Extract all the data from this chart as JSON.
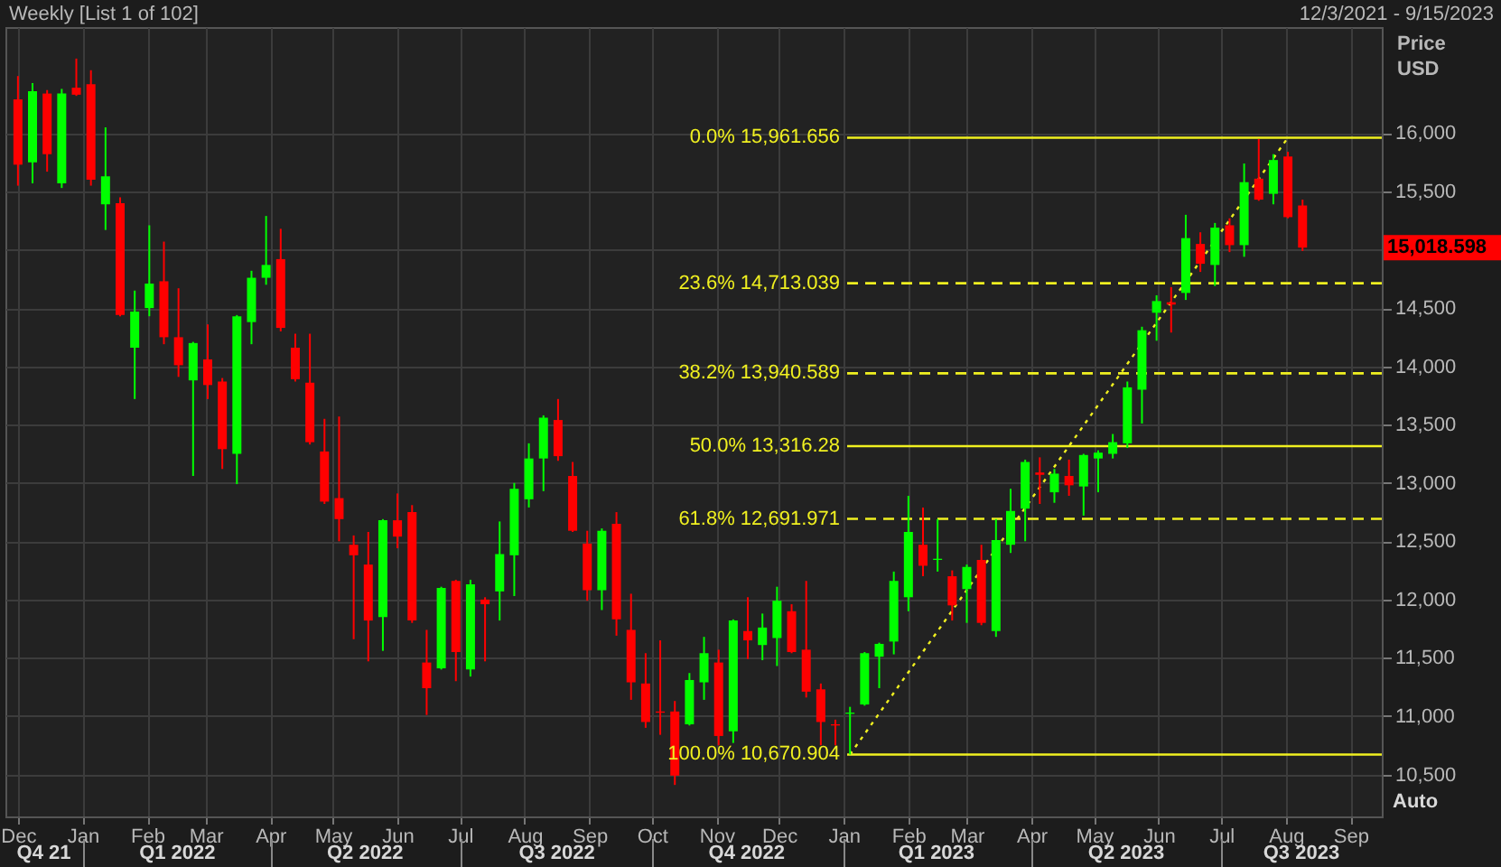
{
  "chart_data": {
    "type": "candlestick",
    "title": "Weekly [List 1 of 102]",
    "subtitle": "12/3/2021 - 9/15/2023",
    "ylabel": "Price\nUSD",
    "annotations": [
      "Auto"
    ],
    "xlim": [
      "2021-11-25",
      "2023-09-16"
    ],
    "xticks": [
      {
        "value": "2021-12-01",
        "label": "Dec"
      },
      {
        "value": "2022-01-01",
        "label": "Jan"
      },
      {
        "value": "2022-02-01",
        "label": "Feb"
      },
      {
        "value": "2022-03-01",
        "label": "Mar"
      },
      {
        "value": "2022-04-01",
        "label": "Apr"
      },
      {
        "value": "2022-05-01",
        "label": "May"
      },
      {
        "value": "2022-06-01",
        "label": "Jun"
      },
      {
        "value": "2022-07-01",
        "label": "Jul"
      },
      {
        "value": "2022-08-01",
        "label": "Aug"
      },
      {
        "value": "2022-09-01",
        "label": "Sep"
      },
      {
        "value": "2022-10-01",
        "label": "Oct"
      },
      {
        "value": "2022-11-01",
        "label": "Nov"
      },
      {
        "value": "2022-12-01",
        "label": "Dec"
      },
      {
        "value": "2023-01-01",
        "label": "Jan"
      },
      {
        "value": "2023-02-01",
        "label": "Feb"
      },
      {
        "value": "2023-03-01",
        "label": "Mar"
      },
      {
        "value": "2023-04-01",
        "label": "Apr"
      },
      {
        "value": "2023-05-01",
        "label": "May"
      },
      {
        "value": "2023-06-01",
        "label": "Jun"
      },
      {
        "value": "2023-07-01",
        "label": "Jul"
      },
      {
        "value": "2023-08-01",
        "label": "Aug"
      },
      {
        "value": "2023-09-01",
        "label": "Sep"
      }
    ],
    "x2lim": [
      "2021-11-25",
      "2023-09-16"
    ],
    "x2ticks": [
      {
        "value": "2021-12-13",
        "label": "Q4 21"
      },
      {
        "value": "2022-01-01",
        "label": null
      },
      {
        "value": "2022-02-15",
        "label": "Q1 2022"
      },
      {
        "value": "2022-04-01",
        "label": null
      },
      {
        "value": "2022-05-16",
        "label": "Q2 2022"
      },
      {
        "value": "2022-07-01",
        "label": null
      },
      {
        "value": "2022-08-16",
        "label": "Q3 2022"
      },
      {
        "value": "2022-10-01",
        "label": null
      },
      {
        "value": "2022-11-15",
        "label": "Q4 2022"
      },
      {
        "value": "2023-01-01",
        "label": null
      },
      {
        "value": "2023-02-14",
        "label": "Q1 2023"
      },
      {
        "value": "2023-04-01",
        "label": null
      },
      {
        "value": "2023-05-16",
        "label": "Q2 2023"
      },
      {
        "value": "2023-07-01",
        "label": null
      },
      {
        "value": "2023-08-08",
        "label": "Q3 2023"
      }
    ],
    "ylim": [
      10140,
      16910
    ],
    "yticks": [
      {
        "value": 10500,
        "label": "10,500"
      },
      {
        "value": 11000,
        "label": "11,000"
      },
      {
        "value": 11500,
        "label": "11,500"
      },
      {
        "value": 12000,
        "label": "12,000"
      },
      {
        "value": 12500,
        "label": "12,500"
      },
      {
        "value": 13000,
        "label": "13,000"
      },
      {
        "value": 13500,
        "label": "13,500"
      },
      {
        "value": 14000,
        "label": "14,000"
      },
      {
        "value": 14500,
        "label": "14,500"
      },
      {
        "value": 15000,
        "label": null
      },
      {
        "value": 15500,
        "label": "15,500"
      },
      {
        "value": 16000,
        "label": "16,000"
      }
    ],
    "grid": true,
    "ref_lines": [
      {
        "axis": "y",
        "value": 15961.656,
        "label": "0.0%  15,961.656",
        "color": "#f0f020",
        "line_style": "solid"
      },
      {
        "axis": "y",
        "value": 14713.039,
        "label": "23.6%  14,713.039",
        "color": "#f0f020",
        "line_style": "dashed"
      },
      {
        "axis": "y",
        "value": 13940.589,
        "label": "38.2%  13,940.589",
        "color": "#f0f020",
        "line_style": "dashed"
      },
      {
        "axis": "y",
        "value": 13316.28,
        "label": "50.0%  13,316.28",
        "color": "#f0f020",
        "line_style": "solid"
      },
      {
        "axis": "y",
        "value": 12691.971,
        "label": "61.8%  12,691.971",
        "color": "#f0f020",
        "line_style": "dashed"
      },
      {
        "axis": "y",
        "value": 10670.904,
        "label": "100.0%  10,670.904",
        "color": "#f0f020",
        "line_style": "solid"
      },
      {
        "axis": "y",
        "value": 15018.598,
        "label": "15,018.598",
        "color": "#ff0000"
      }
    ],
    "series": [
      {
        "type": "line",
        "x": [
          "2023-01-04",
          "2023-08-02"
        ],
        "values": [
          10670.904,
          15961.656
        ],
        "color": "#f0f020",
        "line_style": "dotted"
      },
      {
        "x": [
          "2021-12-01",
          "2021-12-08",
          "2021-12-15",
          "2021-12-22",
          "2021-12-29",
          "2022-01-05",
          "2022-01-12",
          "2022-01-19",
          "2022-01-26",
          "2022-02-02",
          "2022-02-09",
          "2022-02-16",
          "2022-02-23",
          "2022-03-02",
          "2022-03-09",
          "2022-03-16",
          "2022-03-23",
          "2022-03-30",
          "2022-04-06",
          "2022-04-13",
          "2022-04-20",
          "2022-04-27",
          "2022-05-04",
          "2022-05-11",
          "2022-05-18",
          "2022-05-25",
          "2022-06-01",
          "2022-06-08",
          "2022-06-15",
          "2022-06-22",
          "2022-06-29",
          "2022-07-06",
          "2022-07-13",
          "2022-07-20",
          "2022-07-27",
          "2022-08-03",
          "2022-08-10",
          "2022-08-17",
          "2022-08-24",
          "2022-08-31",
          "2022-09-07",
          "2022-09-14",
          "2022-09-21",
          "2022-09-28",
          "2022-10-05",
          "2022-10-12",
          "2022-10-19",
          "2022-10-26",
          "2022-11-02",
          "2022-11-09",
          "2022-11-16",
          "2022-11-23",
          "2022-11-30",
          "2022-12-07",
          "2022-12-14",
          "2022-12-21",
          "2022-12-28",
          "2023-01-04",
          "2023-01-11",
          "2023-01-18",
          "2023-01-25",
          "2023-02-01",
          "2023-02-08",
          "2023-02-15",
          "2023-02-22",
          "2023-03-01",
          "2023-03-08",
          "2023-03-15",
          "2023-03-22",
          "2023-03-29",
          "2023-04-05",
          "2023-04-12",
          "2023-04-19",
          "2023-04-26",
          "2023-05-03",
          "2023-05-10",
          "2023-05-17",
          "2023-05-24",
          "2023-05-31",
          "2023-06-07",
          "2023-06-14",
          "2023-06-21",
          "2023-06-28",
          "2023-07-05",
          "2023-07-12",
          "2023-07-19",
          "2023-07-26",
          "2023-08-02",
          "2023-08-09"
        ],
        "ohlc": [
          [
            16290,
            16490,
            15550,
            15730
          ],
          [
            15750,
            16430,
            15570,
            16360
          ],
          [
            16340,
            16370,
            15670,
            15820
          ],
          [
            15570,
            16380,
            15530,
            16340
          ],
          [
            16390,
            16640,
            16320,
            16330
          ],
          [
            16420,
            16540,
            15550,
            15600
          ],
          [
            15390,
            16050,
            15170,
            15630
          ],
          [
            15400,
            15450,
            14430,
            14440
          ],
          [
            14160,
            14650,
            13720,
            14470
          ],
          [
            14500,
            15210,
            14430,
            14710
          ],
          [
            14730,
            15070,
            14190,
            14250
          ],
          [
            14250,
            14670,
            13910,
            14010
          ],
          [
            13880,
            14210,
            13060,
            14200
          ],
          [
            14060,
            14360,
            13720,
            13840
          ],
          [
            13870,
            13900,
            13120,
            13290
          ],
          [
            13250,
            14440,
            12990,
            14430
          ],
          [
            14380,
            14820,
            14190,
            14760
          ],
          [
            14760,
            15290,
            14700,
            14870
          ],
          [
            14920,
            15180,
            14300,
            14330
          ],
          [
            14160,
            14280,
            13870,
            13890
          ],
          [
            13860,
            14280,
            13330,
            13350
          ],
          [
            13270,
            13550,
            12820,
            12840
          ],
          [
            12870,
            13570,
            12500,
            12690
          ],
          [
            12470,
            12550,
            11660,
            12380
          ],
          [
            12300,
            12580,
            11470,
            11820
          ],
          [
            11850,
            12690,
            11560,
            12680
          ],
          [
            12680,
            12910,
            12440,
            12540
          ],
          [
            12750,
            12810,
            11800,
            11820
          ],
          [
            11460,
            11740,
            11010,
            11240
          ],
          [
            11410,
            12110,
            11400,
            12100
          ],
          [
            12160,
            12170,
            11300,
            11550
          ],
          [
            11400,
            12170,
            11340,
            12130
          ],
          [
            12000,
            12020,
            11470,
            11960
          ],
          [
            12070,
            12670,
            11820,
            12390
          ],
          [
            12380,
            13000,
            12030,
            12950
          ],
          [
            12860,
            13340,
            12790,
            13210
          ],
          [
            13210,
            13580,
            12930,
            13560
          ],
          [
            13540,
            13720,
            13190,
            13230
          ],
          [
            13060,
            13180,
            12580,
            12590
          ],
          [
            12480,
            12590,
            11990,
            12080
          ],
          [
            12080,
            12610,
            11910,
            12590
          ],
          [
            12650,
            12750,
            11690,
            11830
          ],
          [
            11740,
            12050,
            11140,
            11290
          ],
          [
            11280,
            11540,
            10900,
            10950
          ],
          [
            11040,
            11650,
            10840,
            11030
          ],
          [
            11040,
            11130,
            10410,
            10490
          ],
          [
            10930,
            11370,
            10920,
            11310
          ],
          [
            11290,
            11680,
            11140,
            11540
          ],
          [
            11460,
            11570,
            10750,
            10830
          ],
          [
            10870,
            11830,
            10770,
            11820
          ],
          [
            11730,
            12020,
            11490,
            11650
          ],
          [
            11610,
            11880,
            11480,
            11760
          ],
          [
            11670,
            12110,
            11430,
            11990
          ],
          [
            11900,
            11960,
            11540,
            11550
          ],
          [
            11570,
            12160,
            11160,
            11210
          ],
          [
            11230,
            11280,
            10750,
            10950
          ],
          [
            10930,
            10970,
            10750,
            10920
          ],
          [
            11020,
            11080,
            10670.904,
            11030
          ],
          [
            11100,
            11550,
            11090,
            11540
          ],
          [
            11510,
            11630,
            11240,
            11620
          ],
          [
            11640,
            12240,
            11530,
            12160
          ],
          [
            12020,
            12890,
            11900,
            12580
          ],
          [
            12470,
            12790,
            12200,
            12290
          ],
          [
            12340,
            12690,
            12240,
            12350
          ],
          [
            12200,
            12250,
            11820,
            11950
          ],
          [
            12090,
            12300,
            11800,
            12280
          ],
          [
            12340,
            12470,
            11780,
            11800
          ],
          [
            11730,
            12690,
            11680,
            12510
          ],
          [
            12470,
            12950,
            12400,
            12760
          ],
          [
            12780,
            13200,
            12500,
            13180
          ],
          [
            13090,
            13220,
            12820,
            13070
          ],
          [
            12920,
            13120,
            12830,
            13080
          ],
          [
            13060,
            13200,
            12890,
            12980
          ],
          [
            12970,
            13250,
            12720,
            13240
          ],
          [
            13210,
            13280,
            12920,
            13260
          ],
          [
            13250,
            13420,
            13210,
            13350
          ],
          [
            13340,
            13870,
            13300,
            13820
          ],
          [
            13800,
            14340,
            13510,
            14310
          ],
          [
            14460,
            14610,
            14220,
            14560
          ],
          [
            14550,
            14680,
            14290,
            14530
          ],
          [
            14630,
            15300,
            14570,
            15100
          ],
          [
            15050,
            15150,
            14810,
            14880
          ],
          [
            14870,
            15230,
            14690,
            15190
          ],
          [
            15210,
            15270,
            14980,
            15040
          ],
          [
            15040,
            15740,
            14940,
            15580
          ],
          [
            15610,
            15950,
            15420,
            15430
          ],
          [
            15480,
            15820,
            15390,
            15770
          ],
          [
            15800,
            15840,
            15270,
            15280
          ],
          [
            15380,
            15430,
            14990,
            15018.598
          ]
        ],
        "colors": [
          "#ff0000",
          "#00ff00",
          "#ff0000",
          "#00ff00",
          "#ff0000",
          "#ff0000",
          "#00ff00",
          "#ff0000",
          "#00ff00",
          "#00ff00",
          "#ff0000",
          "#ff0000",
          "#00ff00",
          "#ff0000",
          "#ff0000",
          "#00ff00",
          "#00ff00",
          "#00ff00",
          "#ff0000",
          "#ff0000",
          "#ff0000",
          "#ff0000",
          "#ff0000",
          "#ff0000",
          "#ff0000",
          "#00ff00",
          "#ff0000",
          "#ff0000",
          "#ff0000",
          "#00ff00",
          "#ff0000",
          "#00ff00",
          "#ff0000",
          "#00ff00",
          "#00ff00",
          "#00ff00",
          "#00ff00",
          "#ff0000",
          "#ff0000",
          "#ff0000",
          "#00ff00",
          "#ff0000",
          "#ff0000",
          "#ff0000",
          "#ff0000",
          "#ff0000",
          "#00ff00",
          "#00ff00",
          "#ff0000",
          "#00ff00",
          "#ff0000",
          "#00ff00",
          "#00ff00",
          "#ff0000",
          "#ff0000",
          "#ff0000",
          "#ff0000",
          "#00ff00",
          "#00ff00",
          "#00ff00",
          "#00ff00",
          "#00ff00",
          "#ff0000",
          "#00ff00",
          "#ff0000",
          "#00ff00",
          "#ff0000",
          "#00ff00",
          "#00ff00",
          "#00ff00",
          "#ff0000",
          "#00ff00",
          "#ff0000",
          "#00ff00",
          "#00ff00",
          "#00ff00",
          "#00ff00",
          "#00ff00",
          "#00ff00",
          "#ff0000",
          "#00ff00",
          "#ff0000",
          "#00ff00",
          "#ff0000",
          "#00ff00",
          "#ff0000",
          "#00ff00",
          "#ff0000",
          "#ff0000"
        ]
      }
    ]
  }
}
